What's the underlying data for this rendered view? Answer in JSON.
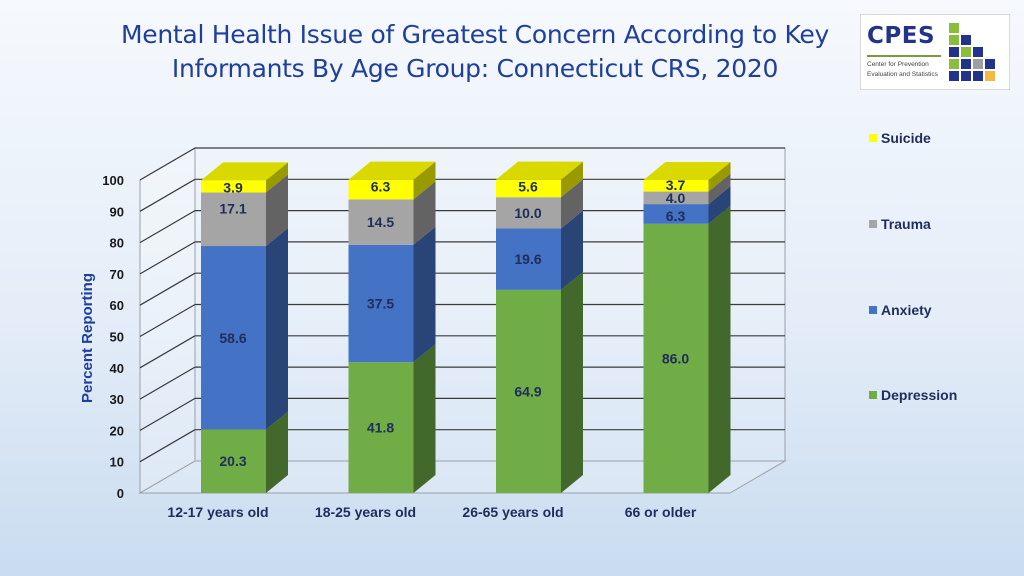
{
  "title": "Mental Health Issue of Greatest Concern According to Key Informants By Age Group: Connecticut CRS, 2020",
  "logo": {
    "name": "CPES",
    "line1": "Center for Prevention",
    "line2": "Evaluation and Statistics",
    "colors": [
      "#8bbd3c",
      "#23338a",
      "#9e9e9e",
      "#f4b942"
    ]
  },
  "chart_data": {
    "type": "bar",
    "stacked": true,
    "three_d": true,
    "ylabel": "Percent Reporting",
    "xlabel": "",
    "ylim": [
      0,
      100
    ],
    "yticks": [
      0,
      10,
      20,
      30,
      40,
      50,
      60,
      70,
      80,
      90,
      100
    ],
    "categories": [
      "12-17 years old",
      "18-25 years old",
      "26-65 years old",
      "66 or older"
    ],
    "series": [
      {
        "name": "Depression",
        "color": "#70ad47",
        "values": [
          20.3,
          41.8,
          64.9,
          86.0
        ],
        "labels": [
          "20.3",
          "41.8",
          "64.9",
          "86.0"
        ]
      },
      {
        "name": "Anxiety",
        "color": "#4472c4",
        "values": [
          58.6,
          37.5,
          19.6,
          6.3
        ],
        "labels": [
          "58.6",
          "37.5",
          "19.6",
          "6.3"
        ]
      },
      {
        "name": "Trauma",
        "color": "#a5a5a5",
        "values": [
          17.1,
          14.5,
          10.0,
          4.0
        ],
        "labels": [
          "17.1",
          "14.5",
          "10.0",
          "4.0"
        ]
      },
      {
        "name": "Suicide",
        "color": "#ffff00",
        "values": [
          3.9,
          6.3,
          5.6,
          3.7
        ],
        "labels": [
          "3.9",
          "6.3",
          "5.6",
          "3.7"
        ]
      }
    ],
    "legend_order": [
      "Suicide",
      "Trauma",
      "Anxiety",
      "Depression"
    ],
    "legend_position": "right",
    "grid": true
  }
}
